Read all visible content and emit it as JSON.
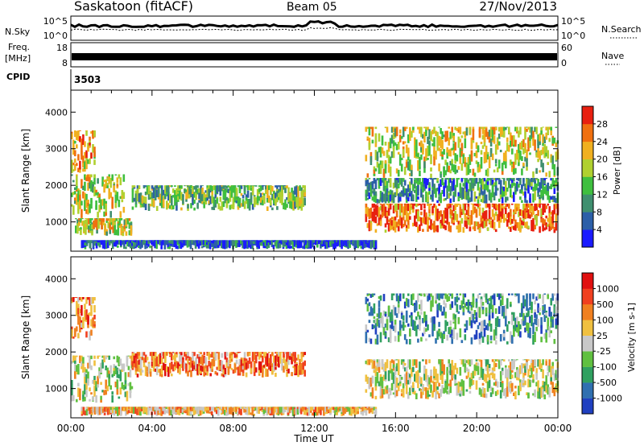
{
  "header": {
    "station": "Saskatoon (fitACF)",
    "beam": "Beam 05",
    "date": "27/Nov/2013"
  },
  "top_panels": {
    "nsky_label": "N.Sky",
    "nsky_ticks": [
      "10^5",
      "10^0"
    ],
    "nsearch_label": "N.Search",
    "nsearch_ticks": [
      "10^5",
      "10^0"
    ],
    "freq_label": "Freq.",
    "freq_unit": "[MHz]",
    "freq_ticks": [
      "18",
      "8"
    ],
    "nave_label": "Nave",
    "nave_ticks": [
      "60",
      "0"
    ],
    "cpid_label": "CPID",
    "cpid_value": "3503"
  },
  "chart_data": [
    {
      "type": "heatmap",
      "name": "power",
      "ylabel": "Slant Range [km]",
      "y_ticks": [
        "1000",
        "2000",
        "3000",
        "4000"
      ],
      "ylim": [
        200,
        4600
      ],
      "xlim": [
        0,
        24
      ],
      "x_ticks": [
        "00:00",
        "04:00",
        "08:00",
        "12:00",
        "16:00",
        "20:00",
        "00:00"
      ],
      "colorbar": {
        "label": "Power [dB]",
        "ticks": [
          "4",
          "8",
          "12",
          "16",
          "20",
          "24",
          "28"
        ],
        "colors": [
          "#1a1aff",
          "#2c5fa8",
          "#3f8f6f",
          "#3fbf3f",
          "#b0d030",
          "#f0b020",
          "#f07010",
          "#e82010"
        ]
      },
      "regions": [
        {
          "t0": 0.0,
          "t1": 1.2,
          "r0": 2300,
          "r1": 3500,
          "level": 5
        },
        {
          "t0": 0.0,
          "t1": 2.6,
          "r0": 1100,
          "r1": 2300,
          "level": 4
        },
        {
          "t0": 0.2,
          "t1": 3.0,
          "r0": 600,
          "r1": 1100,
          "level": 4
        },
        {
          "t0": 3.0,
          "t1": 11.5,
          "r0": 1300,
          "r1": 2000,
          "level": 3
        },
        {
          "t0": 0.5,
          "t1": 15.0,
          "r0": 250,
          "r1": 500,
          "level": 1
        },
        {
          "t0": 14.5,
          "t1": 24.0,
          "r0": 700,
          "r1": 1500,
          "level": 6
        },
        {
          "t0": 14.5,
          "t1": 24.0,
          "r0": 1500,
          "r1": 2200,
          "level": 2
        },
        {
          "t0": 14.5,
          "t1": 24.0,
          "r0": 2200,
          "r1": 3600,
          "level": 4
        }
      ]
    },
    {
      "type": "heatmap",
      "name": "velocity",
      "ylabel": "Slant Range [km]",
      "y_ticks": [
        "1000",
        "2000",
        "3000",
        "4000"
      ],
      "ylim": [
        200,
        4600
      ],
      "xlim": [
        0,
        24
      ],
      "x_ticks": [
        "00:00",
        "04:00",
        "08:00",
        "12:00",
        "16:00",
        "20:00",
        "00:00"
      ],
      "xlabel": "Time UT",
      "colorbar": {
        "label": "Velocity [m s-1]",
        "ticks": [
          "1000",
          "500",
          "100",
          "25",
          "-25",
          "-100",
          "-500",
          "-1000"
        ],
        "colors": [
          "#2040c0",
          "#3070b0",
          "#30a060",
          "#60c040",
          "#c8c8c8",
          "#f0c040",
          "#f08020",
          "#f04020",
          "#e01010"
        ]
      },
      "regions": [
        {
          "t0": 0.0,
          "t1": 1.2,
          "r0": 2300,
          "r1": 3500,
          "level": 6
        },
        {
          "t0": 0.0,
          "t1": 3.0,
          "r0": 600,
          "r1": 1900,
          "level": 4
        },
        {
          "t0": 3.0,
          "t1": 11.5,
          "r0": 1300,
          "r1": 2000,
          "level": 6
        },
        {
          "t0": 0.5,
          "t1": 15.0,
          "r0": 250,
          "r1": 500,
          "level": 5
        },
        {
          "t0": 14.5,
          "t1": 24.0,
          "r0": 700,
          "r1": 1800,
          "level": 4
        },
        {
          "t0": 14.5,
          "t1": 24.0,
          "r0": 2200,
          "r1": 3600,
          "level": 2
        }
      ]
    }
  ]
}
